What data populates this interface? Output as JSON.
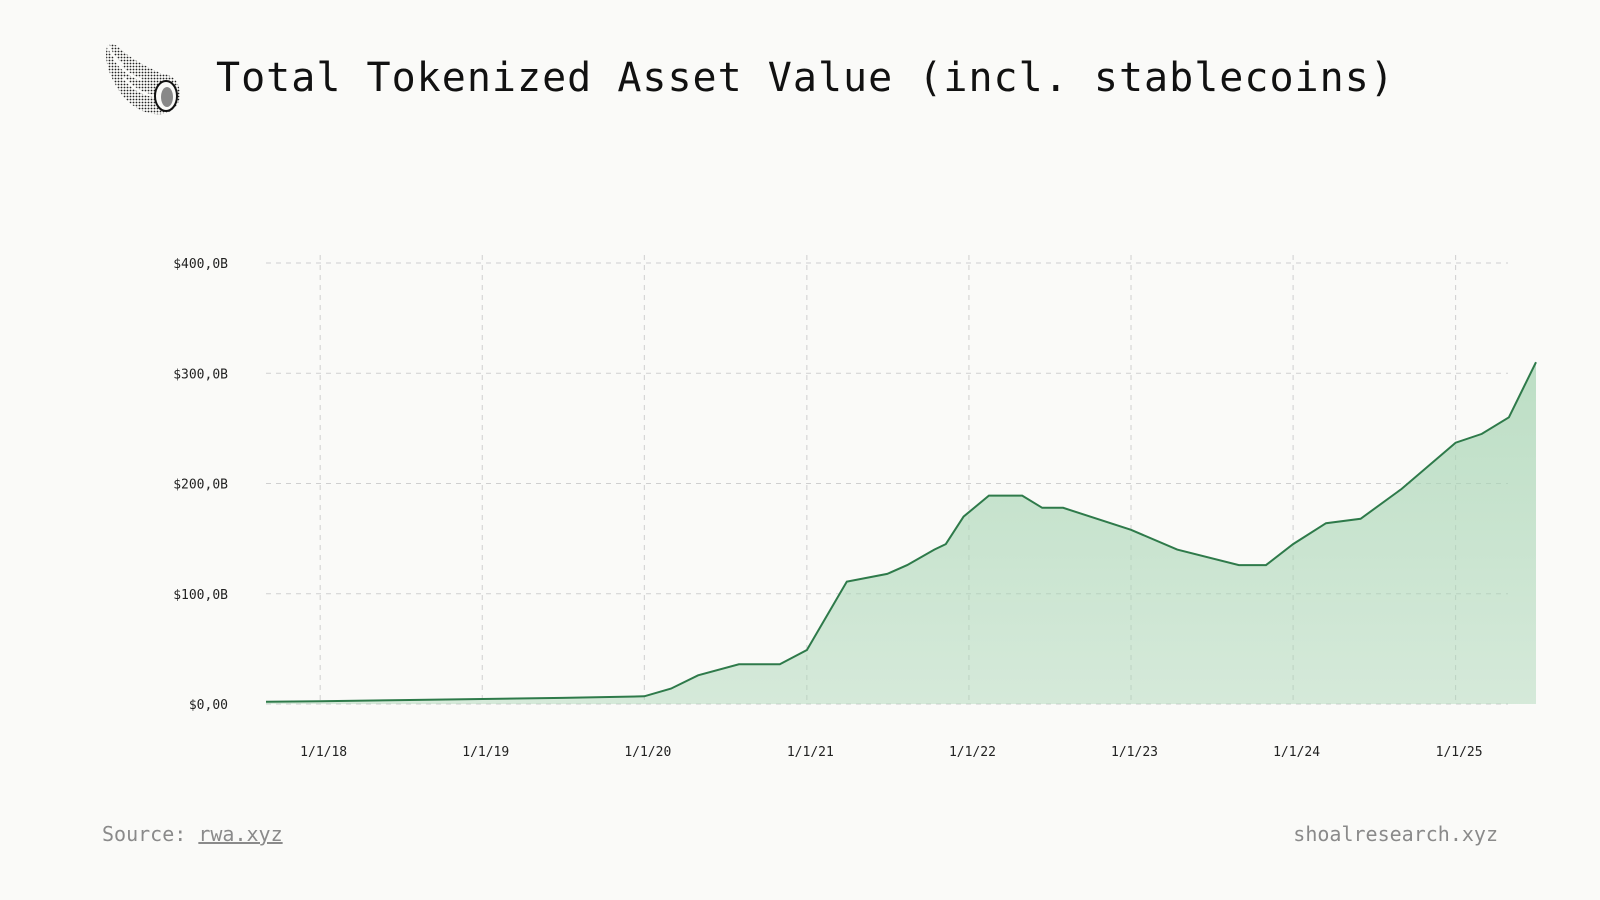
{
  "header": {
    "title": "Total Tokenized Asset Value (incl. stablecoins)",
    "logo_icon": "seashell-icon"
  },
  "footer": {
    "source_prefix": "Source:",
    "source_link": "rwa.xyz",
    "site": "shoalresearch.xyz"
  },
  "colors": {
    "line": "#2e7a4a",
    "fill": "#a8d5b4",
    "grid": "#cfcfcf"
  },
  "chart_data": {
    "type": "area",
    "title": "Total Tokenized Asset Value (incl. stablecoins)",
    "x_tick_labels": [
      "1/1/18",
      "1/1/19",
      "1/1/20",
      "1/1/21",
      "1/1/22",
      "1/1/23",
      "1/1/24",
      "1/1/25"
    ],
    "y_tick_labels": [
      "$400,0B",
      "$300,0B",
      "$200,0B",
      "$100,0B",
      "$0,00"
    ],
    "y_tick_values": [
      400,
      300,
      200,
      100,
      0
    ],
    "ylim": [
      0,
      400
    ],
    "xlim": [
      "2017-09-01",
      "2025-07-01"
    ],
    "grid": true,
    "series": [
      {
        "values_unit": "billion USD",
        "points": [
          {
            "x": "2017-09-01",
            "y": 2
          },
          {
            "x": "2018-01-01",
            "y": 2.5
          },
          {
            "x": "2018-07-01",
            "y": 3.5
          },
          {
            "x": "2019-01-01",
            "y": 4.5
          },
          {
            "x": "2019-07-01",
            "y": 5.5
          },
          {
            "x": "2020-01-01",
            "y": 7
          },
          {
            "x": "2020-03-01",
            "y": 14
          },
          {
            "x": "2020-05-01",
            "y": 26
          },
          {
            "x": "2020-08-01",
            "y": 36
          },
          {
            "x": "2020-11-01",
            "y": 36
          },
          {
            "x": "2021-01-01",
            "y": 49
          },
          {
            "x": "2021-04-01",
            "y": 111
          },
          {
            "x": "2021-07-01",
            "y": 118
          },
          {
            "x": "2021-08-15",
            "y": 126
          },
          {
            "x": "2021-10-15",
            "y": 140
          },
          {
            "x": "2021-11-10",
            "y": 145
          },
          {
            "x": "2021-12-20",
            "y": 170
          },
          {
            "x": "2022-02-15",
            "y": 189
          },
          {
            "x": "2022-05-01",
            "y": 189
          },
          {
            "x": "2022-06-15",
            "y": 178
          },
          {
            "x": "2022-08-01",
            "y": 178
          },
          {
            "x": "2023-01-01",
            "y": 158
          },
          {
            "x": "2023-04-15",
            "y": 140
          },
          {
            "x": "2023-09-01",
            "y": 126
          },
          {
            "x": "2023-11-01",
            "y": 126
          },
          {
            "x": "2024-01-01",
            "y": 145
          },
          {
            "x": "2024-03-15",
            "y": 164
          },
          {
            "x": "2024-06-01",
            "y": 168
          },
          {
            "x": "2024-09-01",
            "y": 195
          },
          {
            "x": "2025-01-01",
            "y": 237
          },
          {
            "x": "2025-03-01",
            "y": 245
          },
          {
            "x": "2025-05-01",
            "y": 260
          },
          {
            "x": "2025-07-01",
            "y": 310
          }
        ]
      }
    ]
  }
}
